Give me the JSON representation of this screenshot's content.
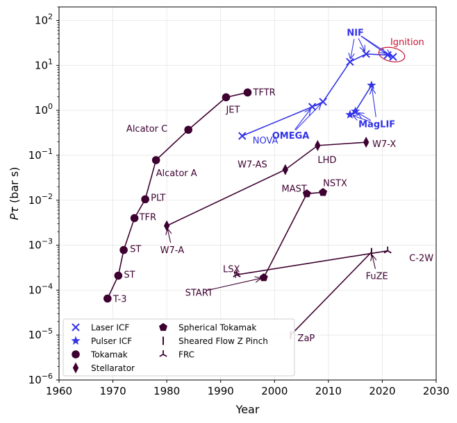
{
  "chart_data": {
    "type": "scatter",
    "title": "",
    "xlabel": "Year",
    "ylabel": "Pτ (bar s)",
    "y_scale": "log",
    "xlim": [
      1960,
      2030
    ],
    "ylim": [
      1e-06,
      200
    ],
    "x_ticks": [
      1960,
      1970,
      1980,
      1990,
      2000,
      2010,
      2020,
      2030
    ],
    "y_ticks": [
      {
        "value": 1e-06,
        "base": "10",
        "exp": "−6"
      },
      {
        "value": 1e-05,
        "base": "10",
        "exp": "−5"
      },
      {
        "value": 0.0001,
        "base": "10",
        "exp": "−4"
      },
      {
        "value": 0.001,
        "base": "10",
        "exp": "−3"
      },
      {
        "value": 0.01,
        "base": "10",
        "exp": "−2"
      },
      {
        "value": 0.1,
        "base": "10",
        "exp": "−1"
      },
      {
        "value": 1,
        "base": "10",
        "exp": "0"
      },
      {
        "value": 10,
        "base": "10",
        "exp": "1"
      },
      {
        "value": 100,
        "base": "10",
        "exp": "2"
      }
    ],
    "grid": true,
    "legend_position": "lower-left",
    "colors": {
      "mcf": "#3d0030",
      "icf": "#3333e8",
      "ignition": "#c8102e",
      "grid": "#e6e6e6"
    },
    "series": [
      {
        "name": "Tokamak",
        "marker": "circle",
        "group": "mcf",
        "connect": true,
        "points": [
          {
            "x": 1969,
            "y": 6.5e-05,
            "label": "T-3"
          },
          {
            "x": 1971,
            "y": 0.00021,
            "label": "ST"
          },
          {
            "x": 1972,
            "y": 0.00078,
            "label": "ST"
          },
          {
            "x": 1974,
            "y": 0.004,
            "label": "TFR"
          },
          {
            "x": 1976,
            "y": 0.0105,
            "label": "PLT"
          },
          {
            "x": 1978,
            "y": 0.078,
            "label": "Alcator A"
          },
          {
            "x": 1984,
            "y": 0.37,
            "label": "Alcator C"
          },
          {
            "x": 1991,
            "y": 1.95,
            "label": "JET"
          },
          {
            "x": 1995,
            "y": 2.5,
            "label": "TFTR"
          }
        ]
      },
      {
        "name": "Stellarator",
        "marker": "diamond",
        "group": "mcf",
        "connect": true,
        "points": [
          {
            "x": 1980,
            "y": 0.0027,
            "label": "W7-A"
          },
          {
            "x": 2002,
            "y": 0.048,
            "label": "W7-AS"
          },
          {
            "x": 2008,
            "y": 0.165,
            "label": "LHD"
          },
          {
            "x": 2017,
            "y": 0.195,
            "label": "W7-X"
          }
        ]
      },
      {
        "name": "Spherical Tokamak",
        "marker": "pentagon",
        "group": "mcf",
        "connect": true,
        "points": [
          {
            "x": 1998,
            "y": 0.00019,
            "label": "START"
          },
          {
            "x": 2006,
            "y": 0.014,
            "label": "MAST"
          },
          {
            "x": 2009,
            "y": 0.015,
            "label": "NSTX"
          }
        ]
      },
      {
        "name": "Sheared Flow Z Pinch",
        "marker": "vline",
        "group": "mcf",
        "connect": true,
        "points": [
          {
            "x": 2003,
            "y": 1e-05,
            "label": "ZaP"
          },
          {
            "x": 2018,
            "y": 0.0007,
            "label": "FuZE"
          }
        ]
      },
      {
        "name": "FRC",
        "marker": "tri",
        "group": "mcf",
        "connect": true,
        "points": [
          {
            "x": 1993,
            "y": 0.00022,
            "label": "LSX"
          },
          {
            "x": 2021,
            "y": 0.00075,
            "label": "C-2W"
          }
        ]
      },
      {
        "name": "Laser ICF",
        "marker": "x",
        "group": "icf",
        "connect": true,
        "points": [
          {
            "x": 1994,
            "y": 0.27,
            "label": "NOVA"
          },
          {
            "x": 2007,
            "y": 1.2,
            "label": "OMEGA"
          },
          {
            "x": 2009,
            "y": 1.55,
            "label": "OMEGA"
          },
          {
            "x": 2014,
            "y": 12,
            "label": "NIF"
          },
          {
            "x": 2017,
            "y": 18,
            "label": "NIF"
          },
          {
            "x": 2021,
            "y": 17,
            "label": "NIF"
          },
          {
            "x": 2022,
            "y": 15.5,
            "label": "NIF"
          }
        ]
      },
      {
        "name": "Pulser ICF",
        "marker": "star",
        "group": "icf",
        "connect": true,
        "points": [
          {
            "x": 2014,
            "y": 0.8,
            "label": "MagLIF"
          },
          {
            "x": 2015,
            "y": 0.95,
            "label": "MagLIF"
          },
          {
            "x": 2018,
            "y": 3.6,
            "label": "MagLIF"
          }
        ]
      }
    ],
    "annotations": [
      {
        "text": "T-3",
        "x": 1969,
        "y": 6.5e-05,
        "dx": 8,
        "dy": 0,
        "anchor": "start",
        "group": "mcf"
      },
      {
        "text": "ST",
        "x": 1971,
        "y": 0.00021,
        "dx": 8,
        "dy": -2,
        "anchor": "start",
        "group": "mcf"
      },
      {
        "text": "ST",
        "x": 1972,
        "y": 0.00078,
        "dx": 9,
        "dy": -2,
        "anchor": "start",
        "group": "mcf"
      },
      {
        "text": "TFR",
        "x": 1974,
        "y": 0.004,
        "dx": 7,
        "dy": -2,
        "anchor": "start",
        "group": "mcf"
      },
      {
        "text": "PLT",
        "x": 1976,
        "y": 0.0105,
        "dx": 8,
        "dy": -3,
        "anchor": "start",
        "group": "mcf"
      },
      {
        "text": "Alcator A",
        "x": 1978,
        "y": 0.078,
        "dx": 0,
        "dy": 18,
        "anchor": "start",
        "group": "mcf"
      },
      {
        "text": "Alcator C",
        "x": 1984,
        "y": 0.37,
        "dx": -30,
        "dy": -2,
        "anchor": "end",
        "group": "mcf"
      },
      {
        "text": "JET",
        "x": 1991,
        "y": 1.95,
        "dx": 0,
        "dy": 17,
        "anchor": "start",
        "group": "mcf"
      },
      {
        "text": "TFTR",
        "x": 1995,
        "y": 2.5,
        "dx": 8,
        "dy": -1,
        "anchor": "start",
        "group": "mcf"
      },
      {
        "text": "W7-AS",
        "x": 2002,
        "y": 0.048,
        "dx": -26,
        "dy": -8,
        "anchor": "end",
        "group": "mcf"
      },
      {
        "text": "LHD",
        "x": 2008,
        "y": 0.165,
        "dx": 0,
        "dy": 20,
        "anchor": "start",
        "group": "mcf"
      },
      {
        "text": "W7-X",
        "x": 2017,
        "y": 0.195,
        "dx": 9,
        "dy": 2,
        "anchor": "start",
        "group": "mcf"
      },
      {
        "text": "MAST",
        "x": 2006,
        "y": 0.014,
        "dx": 0,
        "dy": -8,
        "anchor": "end",
        "group": "mcf"
      },
      {
        "text": "NSTX",
        "x": 2009,
        "y": 0.015,
        "dx": 0,
        "dy": -14,
        "anchor": "start",
        "group": "mcf"
      },
      {
        "text": "ZaP",
        "x": 2003,
        "y": 1e-05,
        "dx": 10,
        "dy": 4,
        "anchor": "start",
        "group": "mcf"
      },
      {
        "text": "C-2W",
        "x": 2021,
        "y": 0.00075,
        "dx": 31,
        "dy": 10,
        "anchor": "start",
        "group": "mcf"
      },
      {
        "text": "NOVA",
        "x": 1994,
        "y": 0.27,
        "dx": 15,
        "dy": 6,
        "anchor": "start",
        "group": "icf"
      },
      {
        "text": "Ignition",
        "x": 2022,
        "y": 15.5,
        "dx": -4,
        "dy": -22,
        "anchor": "start",
        "group": "ignition"
      }
    ],
    "arrow_annotations": [
      {
        "text": "W7-A",
        "tx": 1981,
        "ty": 0.0008,
        "points": [
          {
            "x": 1980,
            "y": 0.0027
          }
        ],
        "group": "mcf",
        "bold": false
      },
      {
        "text": "LSX",
        "tx": 1992,
        "ty": 0.0003,
        "points": [
          {
            "x": 1993,
            "y": 0.00022
          }
        ],
        "group": "mcf",
        "bold": false
      },
      {
        "text": "START",
        "tx": 1986,
        "ty": 9e-05,
        "points": [
          {
            "x": 1998,
            "y": 0.00019
          }
        ],
        "group": "mcf",
        "bold": false
      },
      {
        "text": "FuZE",
        "tx": 2019,
        "ty": 0.00021,
        "points": [
          {
            "x": 2018,
            "y": 0.0007
          }
        ],
        "group": "mcf",
        "bold": false
      },
      {
        "text": "OMEGA",
        "tx": 2003,
        "ty": 0.28,
        "points": [
          {
            "x": 2007,
            "y": 1.2
          },
          {
            "x": 2009,
            "y": 1.55
          }
        ],
        "group": "icf",
        "bold": true
      },
      {
        "text": "NIF",
        "tx": 2015,
        "ty": 55,
        "points": [
          {
            "x": 2014,
            "y": 12
          },
          {
            "x": 2017,
            "y": 18
          },
          {
            "x": 2021,
            "y": 17
          },
          {
            "x": 2022,
            "y": 15.5
          }
        ],
        "group": "icf",
        "bold": true
      },
      {
        "text": "MagLIF",
        "tx": 2019,
        "ty": 0.5,
        "points": [
          {
            "x": 2014,
            "y": 0.8
          },
          {
            "x": 2015,
            "y": 0.95
          },
          {
            "x": 2018,
            "y": 3.6
          }
        ],
        "group": "icf",
        "bold": true
      }
    ]
  }
}
